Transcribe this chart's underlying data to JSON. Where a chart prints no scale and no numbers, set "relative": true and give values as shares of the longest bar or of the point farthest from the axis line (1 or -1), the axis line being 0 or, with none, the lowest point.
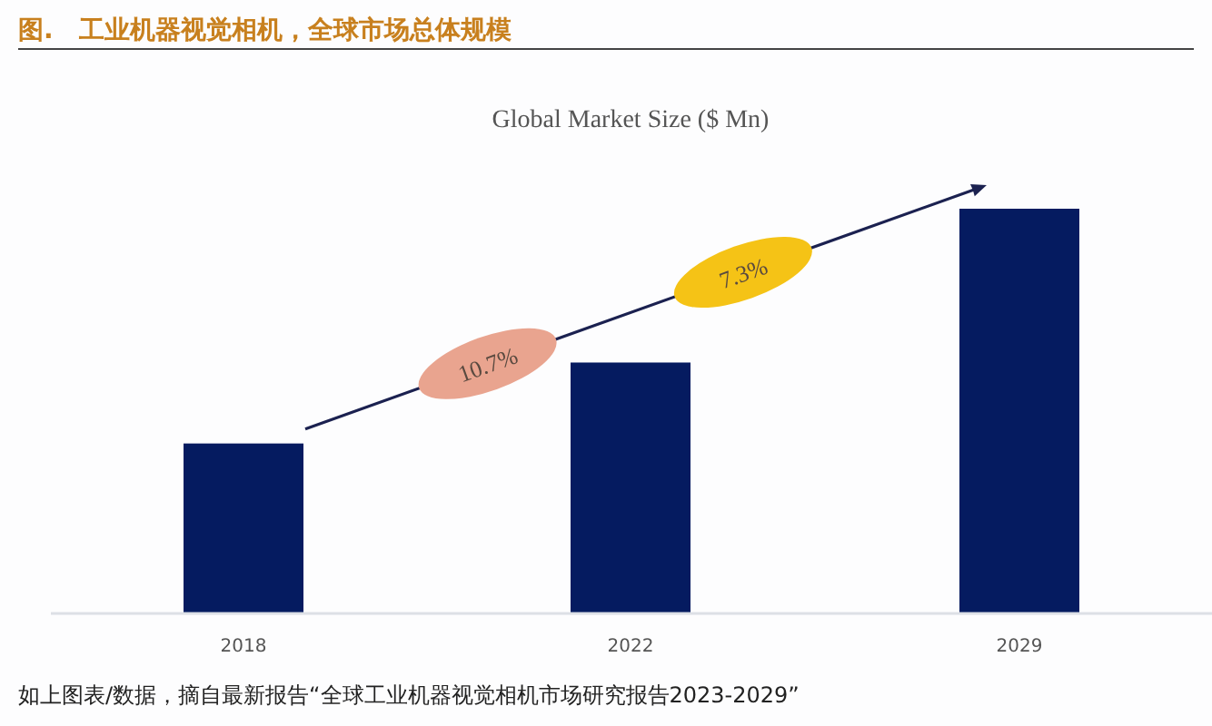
{
  "chart_data": {
    "type": "bar",
    "relative": true,
    "title": "图.　工业机器视觉相机，全球市场总体规模",
    "subtitle": "Global Market Size ($ Mn)",
    "categories": [
      "2018",
      "2022",
      "2029"
    ],
    "values": [
      0.42,
      0.62,
      1
    ],
    "color": "#051b60",
    "annotations": [
      "10.7%",
      "7.3%",
      "如上图表/数据，摘自最新报告“全球工业机器视觉相机市场研究报告2023-2029”"
    ]
  }
}
